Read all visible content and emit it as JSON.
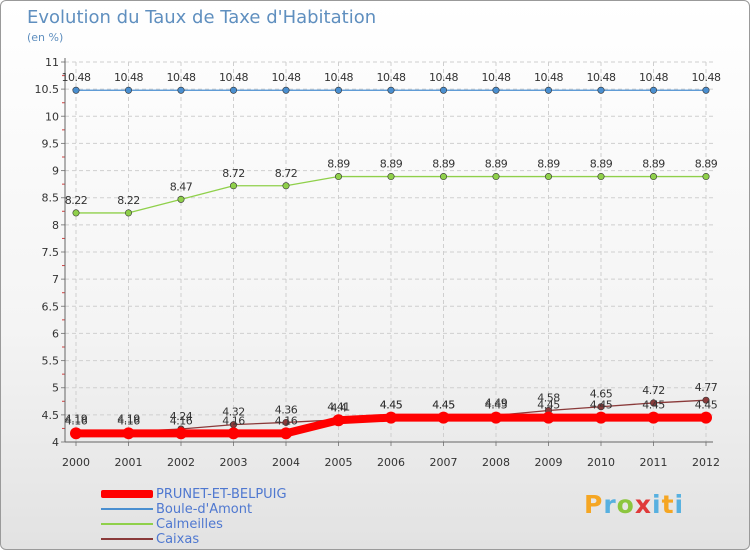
{
  "title": "Evolution du Taux de Taxe d'Habitation",
  "subtitle": "(en %)",
  "logo": {
    "text": "Proxiti",
    "letters": [
      "P",
      "r",
      "o",
      "x",
      "i",
      "t",
      "i"
    ]
  },
  "chart_data": {
    "type": "line",
    "x": [
      2000,
      2001,
      2002,
      2003,
      2004,
      2005,
      2006,
      2007,
      2008,
      2009,
      2010,
      2011,
      2012
    ],
    "ylim": [
      4,
      11
    ],
    "yticks": [
      4,
      4.5,
      5,
      5.5,
      6,
      6.5,
      7,
      7.5,
      8,
      8.5,
      9,
      9.5,
      10,
      10.5,
      11
    ],
    "ytick_labels": [
      "4",
      "4.5",
      "5",
      "5.5",
      "6",
      "6.5",
      "7",
      "7.5",
      "8",
      "8.5",
      "9",
      "9.5",
      "10",
      "10.5",
      "11"
    ],
    "grid": true,
    "legend_position": "bottom-left",
    "series": [
      {
        "name": "PRUNET-ET-BELPUIG",
        "color": "#ff0000",
        "values": [
          4.16,
          4.16,
          4.16,
          4.16,
          4.16,
          4.4,
          4.45,
          4.45,
          4.45,
          4.45,
          4.45,
          4.45,
          4.45
        ],
        "labels": [
          "4.16",
          "4.16",
          "4.16",
          "4.16",
          "4.16",
          "4.4",
          "4.45",
          "4.45",
          "4.45",
          "4.45",
          "4.45",
          "4.45",
          "4.45"
        ]
      },
      {
        "name": "Boule-d'Amont",
        "color": "#4a8fd0",
        "values": [
          10.48,
          10.48,
          10.48,
          10.48,
          10.48,
          10.48,
          10.48,
          10.48,
          10.48,
          10.48,
          10.48,
          10.48,
          10.48
        ],
        "labels": [
          "10.48",
          "10.48",
          "10.48",
          "10.48",
          "10.48",
          "10.48",
          "10.48",
          "10.48",
          "10.48",
          "10.48",
          "10.48",
          "10.48",
          "10.48"
        ]
      },
      {
        "name": "Calmeilles",
        "color": "#8fd04a",
        "values": [
          8.22,
          8.22,
          8.47,
          8.72,
          8.72,
          8.89,
          8.89,
          8.89,
          8.89,
          8.89,
          8.89,
          8.89,
          8.89
        ],
        "labels": [
          "8.22",
          "8.22",
          "8.47",
          "8.72",
          "8.72",
          "8.89",
          "8.89",
          "8.89",
          "8.89",
          "8.89",
          "8.89",
          "8.89",
          "8.89"
        ]
      },
      {
        "name": "Caixas",
        "color": "#8a3a3a",
        "values": [
          4.19,
          4.19,
          4.24,
          4.32,
          4.36,
          4.41,
          4.45,
          4.45,
          4.49,
          4.58,
          4.65,
          4.72,
          4.77
        ],
        "labels": [
          "4.19",
          "4.19",
          "4.24",
          "4.32",
          "4.36",
          "4.41",
          "4.45",
          "4.45",
          "4.49",
          "4.58",
          "4.65",
          "4.72",
          "4.77"
        ]
      }
    ]
  }
}
